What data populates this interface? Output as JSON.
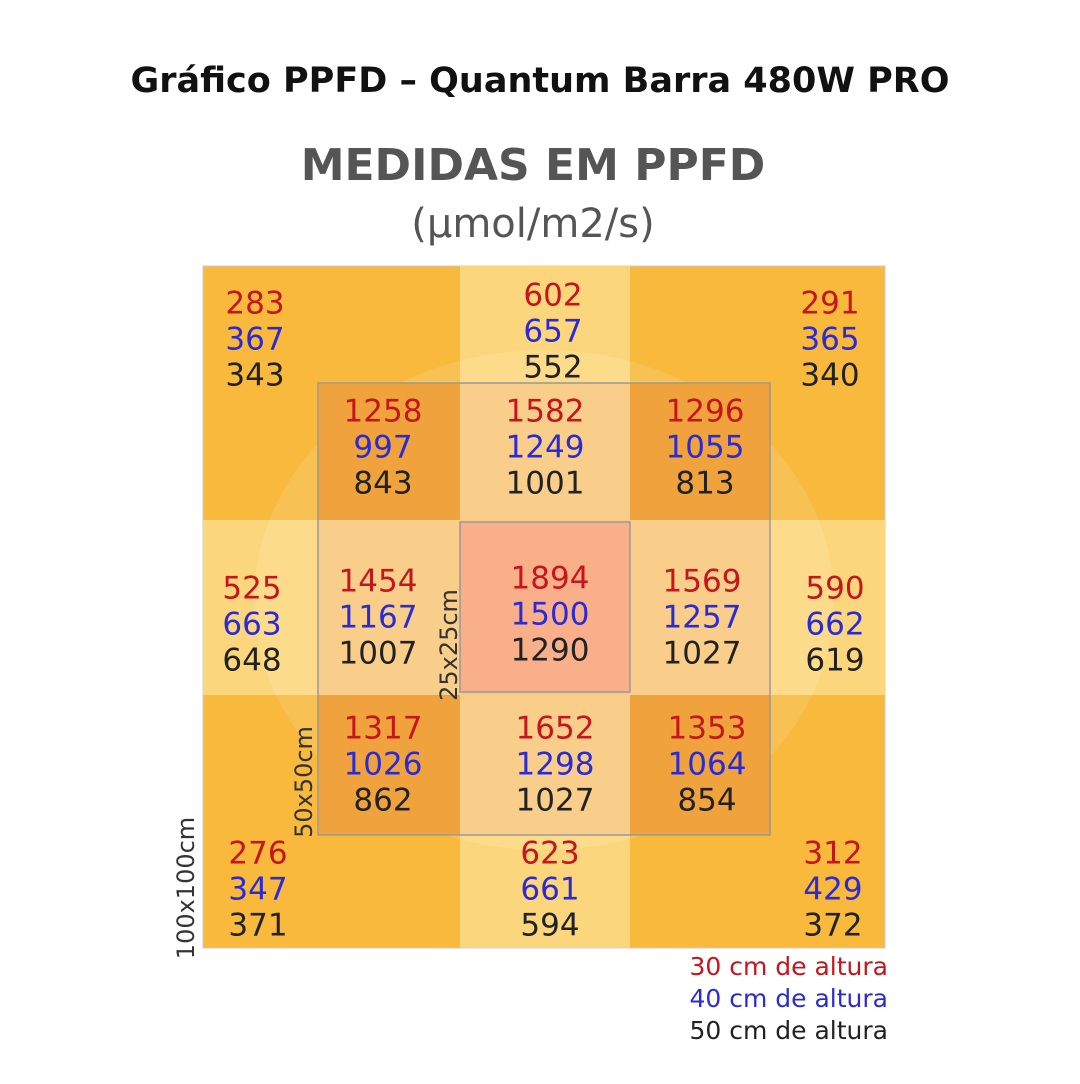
{
  "title": "Gráfico PPFD – Quantum Barra 480W PRO",
  "heading": "MEDIDAS EM PPFD",
  "unit": "(µmol/m2/s)",
  "cells": [
    {
      "values": [
        283,
        367,
        343
      ]
    },
    {
      "values": [
        602,
        657,
        552
      ]
    },
    {
      "values": [
        291,
        365,
        340
      ]
    },
    {
      "values": [
        1258,
        997,
        843
      ]
    },
    {
      "values": [
        1582,
        1249,
        1001
      ]
    },
    {
      "values": [
        1296,
        1055,
        813
      ]
    },
    {
      "values": [
        525,
        663,
        648
      ]
    },
    {
      "values": [
        1454,
        1167,
        1007
      ]
    },
    {
      "values": [
        1894,
        1500,
        1290
      ]
    },
    {
      "values": [
        1569,
        1257,
        1027
      ]
    },
    {
      "values": [
        590,
        662,
        619
      ]
    },
    {
      "values": [
        1317,
        1026,
        862
      ]
    },
    {
      "values": [
        1652,
        1298,
        1027
      ]
    },
    {
      "values": [
        1353,
        1064,
        854
      ]
    },
    {
      "values": [
        276,
        347,
        371
      ]
    },
    {
      "values": [
        623,
        661,
        594
      ]
    },
    {
      "values": [
        312,
        429,
        372
      ]
    }
  ],
  "size_labels": [
    "25x25cm",
    "50x50cm",
    "100x100cm"
  ],
  "legend": [
    "30 cm de altura",
    "40 cm de altura",
    "50 cm de altura"
  ]
}
